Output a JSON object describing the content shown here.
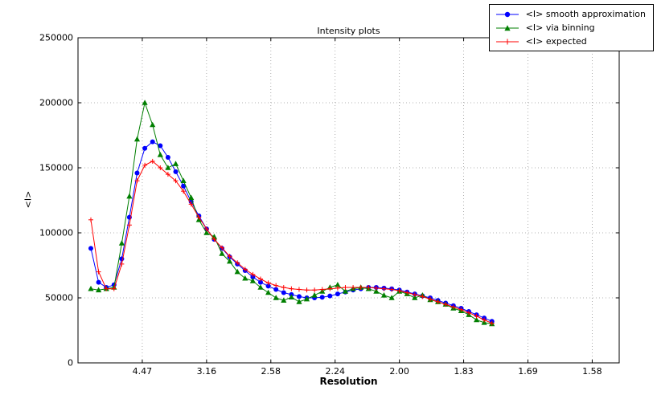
{
  "figure": {
    "title": "Intensity plots",
    "xlabel": "Resolution",
    "ylabel": "<I>"
  },
  "legend": {
    "items": [
      {
        "label": "<I> smooth approximation",
        "color": "#0000ff",
        "marker": "circle"
      },
      {
        "label": "<I> via binning",
        "color": "#007f00",
        "marker": "triangle"
      },
      {
        "label": "<I> expected",
        "color": "#ff0000",
        "marker": "plus"
      }
    ]
  },
  "chart_data": {
    "type": "line",
    "title": "Intensity plots",
    "xlabel": "Resolution",
    "ylabel": "<I>",
    "x_scale": "1/d^2",
    "xlim": [
      0,
      0.421
    ],
    "ylim": [
      0,
      250000
    ],
    "grid": "dotted",
    "legend_position": "upper-right-outside",
    "x_ticks": {
      "positions": [
        0.05,
        0.1,
        0.15,
        0.2,
        0.25,
        0.3,
        0.35,
        0.4
      ],
      "labels": [
        "4.47",
        "3.16",
        "2.58",
        "2.24",
        "2.00",
        "1.83",
        "1.69",
        "1.58"
      ]
    },
    "y_ticks": [
      0,
      50000,
      100000,
      150000,
      200000,
      250000
    ],
    "x": [
      0.01,
      0.016,
      0.022,
      0.028,
      0.034,
      0.04,
      0.046,
      0.052,
      0.058,
      0.064,
      0.07,
      0.076,
      0.082,
      0.088,
      0.094,
      0.1,
      0.106,
      0.112,
      0.118,
      0.124,
      0.13,
      0.136,
      0.142,
      0.148,
      0.154,
      0.16,
      0.166,
      0.172,
      0.178,
      0.184,
      0.19,
      0.196,
      0.202,
      0.208,
      0.214,
      0.22,
      0.226,
      0.232,
      0.238,
      0.244,
      0.25,
      0.256,
      0.262,
      0.268,
      0.274,
      0.28,
      0.286,
      0.292,
      0.298,
      0.304,
      0.31,
      0.316,
      0.322
    ],
    "series": [
      {
        "name": "<I> smooth approximation",
        "color": "#0000ff",
        "marker": "circle",
        "values": [
          88000,
          62000,
          58000,
          60000,
          80000,
          112000,
          146000,
          165000,
          170000,
          167000,
          158000,
          147000,
          136000,
          124000,
          113000,
          103000,
          95000,
          88000,
          81500,
          76000,
          71000,
          66000,
          62000,
          59000,
          56500,
          54000,
          52500,
          51000,
          50000,
          50000,
          50500,
          51500,
          53000,
          54500,
          56000,
          57000,
          58000,
          58000,
          57500,
          57000,
          56000,
          54500,
          53000,
          51500,
          50000,
          48000,
          46000,
          44000,
          42000,
          39500,
          37000,
          34500,
          32000
        ]
      },
      {
        "name": "<I> via binning",
        "color": "#007f00",
        "marker": "triangle",
        "values": [
          57000,
          56000,
          57000,
          58000,
          92000,
          128000,
          172000,
          200000,
          183000,
          160000,
          150000,
          153000,
          140000,
          127000,
          110000,
          100000,
          97000,
          84000,
          78000,
          70000,
          65000,
          63000,
          58000,
          54000,
          50000,
          48000,
          50500,
          47000,
          49000,
          52000,
          55000,
          58000,
          60000,
          55000,
          57000,
          58000,
          57000,
          55000,
          52000,
          50000,
          55000,
          53000,
          50000,
          52000,
          48500,
          47000,
          45000,
          42000,
          40000,
          37000,
          33000,
          31000,
          30000
        ]
      },
      {
        "name": "<I> expected",
        "color": "#ff0000",
        "marker": "plus",
        "values": [
          110000,
          70000,
          57000,
          57000,
          76000,
          106000,
          140000,
          152000,
          155000,
          150000,
          145000,
          140000,
          132000,
          122000,
          112000,
          103000,
          95000,
          88500,
          82000,
          77000,
          72000,
          68000,
          64500,
          61500,
          59500,
          58000,
          57000,
          56500,
          56000,
          56000,
          56500,
          57000,
          57500,
          58000,
          58000,
          58000,
          58000,
          57500,
          57000,
          56500,
          55500,
          54000,
          52500,
          51000,
          49000,
          47000,
          45000,
          43000,
          41000,
          38500,
          36000,
          33000,
          30500
        ]
      }
    ]
  }
}
